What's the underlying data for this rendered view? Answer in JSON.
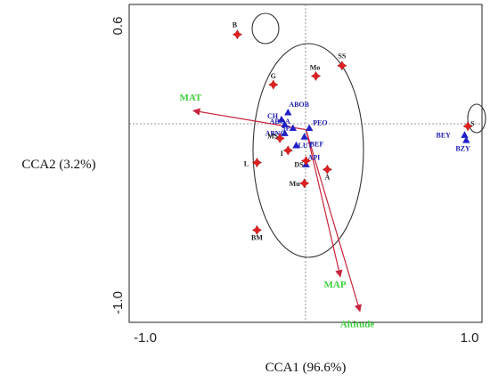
{
  "chart_data": {
    "type": "scatter",
    "xlabel": "CCA1 (96.6%)",
    "ylabel": "CCA2 (3.2%)",
    "xlim": [
      -1.0,
      1.0
    ],
    "ylim": [
      -1.0,
      0.6
    ],
    "x_ticks": [
      {
        "value": -1.0,
        "label": "-1.0"
      },
      {
        "value": 1.0,
        "label": "1.0"
      }
    ],
    "y_ticks": [
      {
        "value": 0.6,
        "label": "0.6"
      },
      {
        "value": -1.0,
        "label": "-1.0"
      }
    ],
    "colors": {
      "site_marker": "#e02020",
      "species_marker": "#2020c8",
      "species_label": "#2020b0",
      "arrow": "#c8243c",
      "env_label": "#3ecf3e",
      "ellipse": "#333333"
    },
    "sites": [
      {
        "label": "B",
        "x": -0.42,
        "y": 0.55
      },
      {
        "label": "SS",
        "x": 0.22,
        "y": 0.37
      },
      {
        "label": "Mo",
        "x": 0.06,
        "y": 0.31
      },
      {
        "label": "G",
        "x": -0.2,
        "y": 0.26
      },
      {
        "label": "S",
        "x": 0.99,
        "y": 0.02
      },
      {
        "label": "MS",
        "x": -0.16,
        "y": -0.05
      },
      {
        "label": "I",
        "x": -0.11,
        "y": -0.12
      },
      {
        "label": "L",
        "x": -0.3,
        "y": -0.19
      },
      {
        "label": "DS",
        "x": 0.0,
        "y": -0.18
      },
      {
        "label": "A",
        "x": 0.13,
        "y": -0.23
      },
      {
        "label": "Mu",
        "x": -0.01,
        "y": -0.31
      },
      {
        "label": "BM",
        "x": -0.3,
        "y": -0.58
      }
    ],
    "species": [
      {
        "label": "ABOB",
        "x": -0.11,
        "y": 0.1
      },
      {
        "label": "CH",
        "x": -0.15,
        "y": 0.06
      },
      {
        "label": "ABOA",
        "x": -0.13,
        "y": 0.03
      },
      {
        "label": "SP",
        "x": -0.08,
        "y": 0.01
      },
      {
        "label": "PEO",
        "x": 0.02,
        "y": 0.01
      },
      {
        "label": "ABNO",
        "x": -0.13,
        "y": -0.02
      },
      {
        "label": "BEF",
        "x": -0.01,
        "y": -0.04
      },
      {
        "label": "LUT",
        "x": -0.06,
        "y": -0.09
      },
      {
        "label": "API",
        "x": 0.0,
        "y": -0.2
      },
      {
        "label": "BEY",
        "x": 0.97,
        "y": -0.03
      },
      {
        "label": "BZY",
        "x": 0.98,
        "y": -0.06
      }
    ],
    "env_vectors": [
      {
        "label": "MAT",
        "x": -0.69,
        "y": 0.11
      },
      {
        "label": "MAP",
        "x": 0.21,
        "y": -0.85
      },
      {
        "label": "Altitude",
        "x": 0.33,
        "y": -1.05
      }
    ]
  }
}
